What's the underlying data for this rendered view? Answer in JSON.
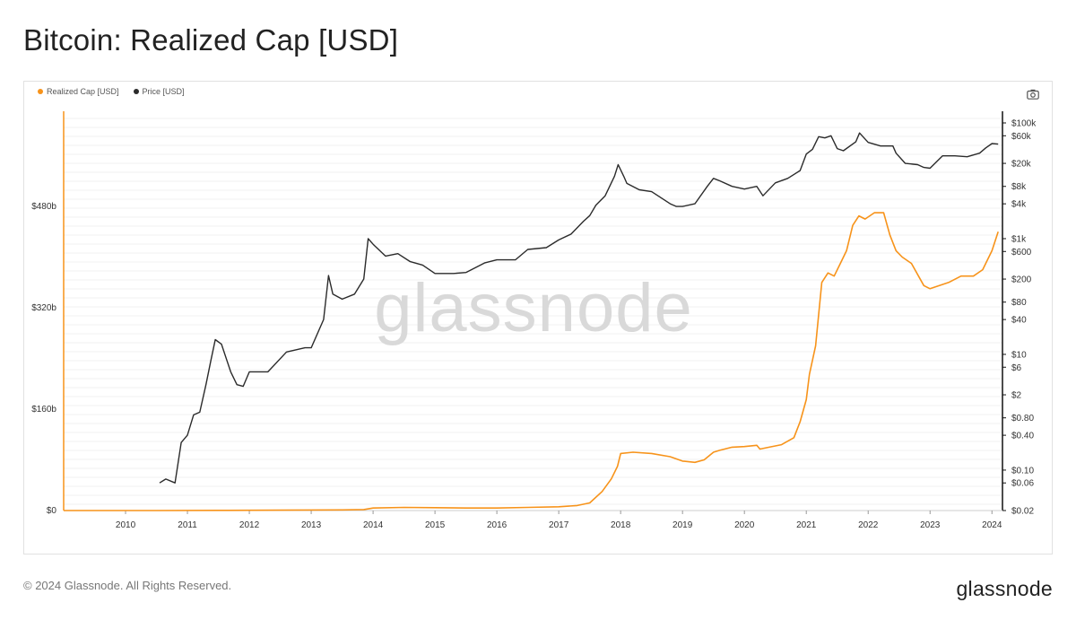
{
  "page": {
    "title": "Bitcoin: Realized Cap [USD]",
    "copyright": "© 2024 Glassnode. All Rights Reserved.",
    "logo": "glassnode",
    "watermark": "glassnode",
    "camera_icon": "camera-icon"
  },
  "chart_data": {
    "type": "line",
    "title": "Bitcoin: Realized Cap [USD]",
    "legend_placement": "top-left",
    "grid": true,
    "x_ticks": [
      "2010",
      "2011",
      "2012",
      "2013",
      "2014",
      "2015",
      "2016",
      "2017",
      "2018",
      "2019",
      "2020",
      "2021",
      "2022",
      "2023",
      "2024"
    ],
    "x_range": [
      2009.0,
      2024.17
    ],
    "left_axis": {
      "scale": "linear",
      "ylim": [
        0,
        480
      ],
      "unit": "billion USD",
      "ticks": [
        0,
        160,
        320,
        480
      ],
      "tick_labels": [
        "$0",
        "$160b",
        "$320b",
        "$480b"
      ]
    },
    "right_axis": {
      "scale": "log",
      "ylim": [
        0.02,
        100000
      ],
      "ticks": [
        0.02,
        0.06,
        0.1,
        0.4,
        0.8,
        2,
        6,
        10,
        40,
        80,
        200,
        600,
        1000,
        4000,
        8000,
        20000,
        60000,
        100000
      ],
      "tick_labels": [
        "$0.02",
        "$0.06",
        "$0.10",
        "$0.40",
        "$0.80",
        "$2",
        "$6",
        "$10",
        "$40",
        "$80",
        "$200",
        "$600",
        "$1k",
        "$4k",
        "$8k",
        "$20k",
        "$60k",
        "$100k"
      ]
    },
    "series": [
      {
        "name": "Realized Cap [USD]",
        "color": "#f7931a",
        "axis": "left",
        "unit": "billion USD",
        "x": [
          2009.0,
          2010.5,
          2011.5,
          2012.5,
          2013.5,
          2013.85,
          2014.0,
          2014.5,
          2015.0,
          2015.5,
          2016.0,
          2016.5,
          2017.0,
          2017.3,
          2017.5,
          2017.7,
          2017.85,
          2017.95,
          2018.0,
          2018.2,
          2018.5,
          2018.8,
          2019.0,
          2019.2,
          2019.35,
          2019.5,
          2019.6,
          2019.8,
          2020.0,
          2020.2,
          2020.25,
          2020.4,
          2020.6,
          2020.8,
          2020.9,
          2021.0,
          2021.05,
          2021.15,
          2021.25,
          2021.35,
          2021.45,
          2021.55,
          2021.65,
          2021.75,
          2021.85,
          2021.95,
          2022.1,
          2022.25,
          2022.35,
          2022.45,
          2022.55,
          2022.7,
          2022.9,
          2023.0,
          2023.15,
          2023.3,
          2023.5,
          2023.7,
          2023.85,
          2024.0,
          2024.1
        ],
        "y": [
          0,
          0.05,
          0.3,
          0.5,
          1,
          1.5,
          4,
          5,
          4.5,
          4,
          4,
          5,
          6,
          8,
          12,
          30,
          50,
          70,
          90,
          92,
          90,
          85,
          78,
          76,
          80,
          92,
          95,
          100,
          101,
          103,
          97,
          100,
          104,
          115,
          140,
          175,
          215,
          260,
          360,
          375,
          370,
          390,
          410,
          450,
          465,
          460,
          470,
          470,
          435,
          410,
          400,
          390,
          355,
          350,
          355,
          360,
          370,
          370,
          380,
          410,
          440
        ]
      },
      {
        "name": "Price [USD]",
        "color": "#2b2b2b",
        "axis": "right",
        "unit": "USD",
        "x": [
          2010.55,
          2010.65,
          2010.8,
          2010.9,
          2011.0,
          2011.1,
          2011.2,
          2011.3,
          2011.38,
          2011.45,
          2011.55,
          2011.7,
          2011.8,
          2011.9,
          2012.0,
          2012.3,
          2012.6,
          2012.9,
          2013.0,
          2013.2,
          2013.28,
          2013.35,
          2013.5,
          2013.7,
          2013.85,
          2013.92,
          2014.0,
          2014.2,
          2014.4,
          2014.6,
          2014.8,
          2015.0,
          2015.3,
          2015.5,
          2015.8,
          2016.0,
          2016.3,
          2016.5,
          2016.8,
          2017.0,
          2017.2,
          2017.4,
          2017.5,
          2017.6,
          2017.75,
          2017.9,
          2017.96,
          2018.05,
          2018.1,
          2018.3,
          2018.5,
          2018.8,
          2018.9,
          2019.0,
          2019.2,
          2019.4,
          2019.5,
          2019.6,
          2019.8,
          2020.0,
          2020.2,
          2020.3,
          2020.5,
          2020.7,
          2020.9,
          2021.0,
          2021.1,
          2021.2,
          2021.3,
          2021.4,
          2021.5,
          2021.6,
          2021.8,
          2021.86,
          2022.0,
          2022.2,
          2022.4,
          2022.45,
          2022.6,
          2022.8,
          2022.9,
          2023.0,
          2023.2,
          2023.4,
          2023.6,
          2023.8,
          2023.9,
          2024.0,
          2024.1
        ],
        "y": [
          0.06,
          0.07,
          0.06,
          0.3,
          0.4,
          0.9,
          1,
          3,
          8,
          18,
          15,
          5,
          3,
          2.8,
          5,
          5,
          11,
          13,
          13,
          40,
          230,
          110,
          90,
          110,
          200,
          1000,
          800,
          500,
          550,
          400,
          350,
          250,
          250,
          260,
          380,
          430,
          430,
          650,
          700,
          950,
          1200,
          2000,
          2500,
          3800,
          5500,
          12000,
          19000,
          12000,
          9000,
          7000,
          6500,
          4000,
          3600,
          3600,
          4000,
          8000,
          11000,
          10000,
          8000,
          7200,
          8000,
          5500,
          9200,
          11000,
          15000,
          29000,
          35000,
          58000,
          55000,
          60000,
          36000,
          33000,
          47000,
          67000,
          46000,
          40000,
          40000,
          30000,
          20000,
          19000,
          17000,
          16500,
          27000,
          27000,
          26000,
          30000,
          37000,
          44000,
          43000
        ]
      }
    ]
  }
}
